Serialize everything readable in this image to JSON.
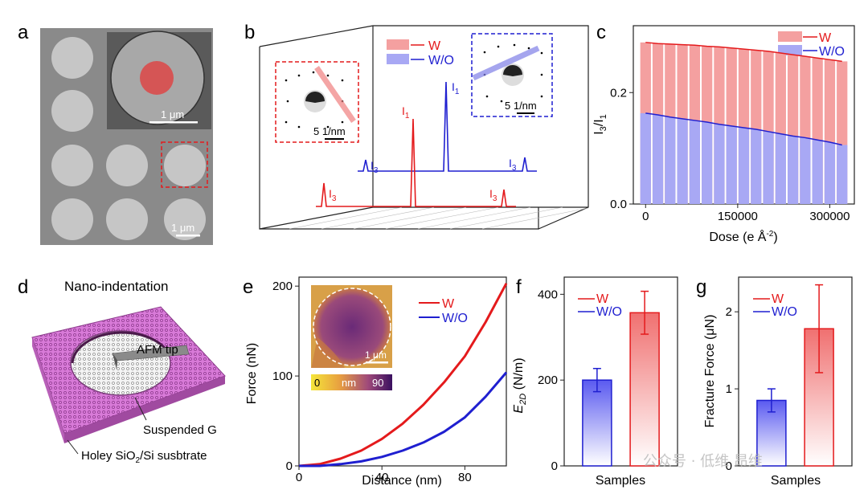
{
  "panel_labels": {
    "a": "a",
    "b": "b",
    "c": "c",
    "d": "d",
    "e": "e",
    "f": "f",
    "g": "g"
  },
  "colors": {
    "red": "#e41a1c",
    "blue": "#1f1fd0",
    "light_red": "#f4a0a0",
    "light_blue": "#a8a8f4"
  },
  "panel_a": {
    "inset_scale": "1 μm",
    "scale": "1 μm"
  },
  "panel_b": {
    "legend": [
      "W",
      "W/O"
    ],
    "inset_red_scale": "5 1/nm",
    "inset_blue_scale": "5 1/nm",
    "peaks_blue": [
      "I",
      "3",
      "I",
      "1",
      "I",
      "3"
    ],
    "peaks_red": [
      "I",
      "3",
      "I",
      "1",
      "I",
      "3"
    ]
  },
  "chart_data": [
    {
      "panel": "c",
      "type": "bar",
      "title": "",
      "xlabel": "Dose (e Å",
      "xlabel_sup": "-2",
      "xlabel_end": ")",
      "ylabel_parts": [
        "I",
        "3",
        "/I",
        "1"
      ],
      "xticks": [
        "0",
        "150000",
        "300000"
      ],
      "yticks": [
        "0.0",
        "0.2"
      ],
      "ylim": [
        0,
        0.32
      ],
      "xlim": [
        -20000,
        340000
      ],
      "legend": [
        "W",
        "W/O"
      ],
      "x": [
        0,
        20000,
        40000,
        60000,
        80000,
        100000,
        120000,
        140000,
        160000,
        180000,
        200000,
        220000,
        240000,
        260000,
        280000,
        300000,
        320000
      ],
      "series": [
        {
          "name": "W",
          "values": [
            0.29,
            0.288,
            0.287,
            0.286,
            0.285,
            0.283,
            0.282,
            0.28,
            0.278,
            0.276,
            0.274,
            0.271,
            0.268,
            0.265,
            0.262,
            0.259,
            0.256
          ]
        },
        {
          "name": "W/O",
          "values": [
            0.163,
            0.16,
            0.156,
            0.153,
            0.15,
            0.147,
            0.143,
            0.14,
            0.137,
            0.134,
            0.13,
            0.126,
            0.122,
            0.119,
            0.115,
            0.111,
            0.106
          ]
        }
      ]
    },
    {
      "panel": "e",
      "type": "line",
      "xlabel": "Distance (nm)",
      "ylabel": "Force (nN)",
      "xticks": [
        "0",
        "40",
        "80"
      ],
      "yticks": [
        "0",
        "100",
        "200"
      ],
      "xlim": [
        0,
        100
      ],
      "ylim": [
        0,
        210
      ],
      "legend": [
        "W",
        "W/O"
      ],
      "inset_scale": "1 μm",
      "colorbar": [
        "0",
        "nm",
        "90"
      ],
      "series": [
        {
          "name": "W",
          "x": [
            0,
            10,
            20,
            30,
            40,
            50,
            60,
            70,
            80,
            90,
            100
          ],
          "values": [
            0,
            2,
            8,
            17,
            30,
            47,
            68,
            93,
            122,
            160,
            203
          ]
        },
        {
          "name": "W/O",
          "x": [
            0,
            10,
            20,
            30,
            40,
            50,
            60,
            70,
            80,
            90,
            100
          ],
          "values": [
            0,
            0,
            2,
            5,
            10,
            17,
            26,
            38,
            54,
            77,
            104
          ]
        }
      ]
    },
    {
      "panel": "f",
      "type": "bar",
      "xlabel": "Samples",
      "ylabel": "E",
      "ylabel_sub": "2D",
      "ylabel_unit": " (N/m)",
      "yticks": [
        "0",
        "200",
        "400"
      ],
      "ylim": [
        0,
        440
      ],
      "legend": [
        "W",
        "W/O"
      ],
      "categories": [
        "W/O",
        "W"
      ],
      "values": [
        200,
        357
      ],
      "errors": [
        27,
        50
      ]
    },
    {
      "panel": "g",
      "type": "bar",
      "xlabel": "Samples",
      "ylabel": "Fracture Force (μN)",
      "yticks": [
        "0",
        "1",
        "2"
      ],
      "ylim": [
        0,
        2.45
      ],
      "legend": [
        "W",
        "W/O"
      ],
      "categories": [
        "W/O",
        "W"
      ],
      "values": [
        0.85,
        1.78
      ],
      "errors": [
        0.15,
        0.57
      ]
    }
  ],
  "panel_d": {
    "title": "Nano-indentation",
    "tip_label": "AFM tip",
    "suspended_label": "Suspended G",
    "substrate_label_pre": "Holey SiO",
    "substrate_sub": "2",
    "substrate_label_post": "/Si susbtrate"
  },
  "watermark": "公众号 · 低维 昂维"
}
